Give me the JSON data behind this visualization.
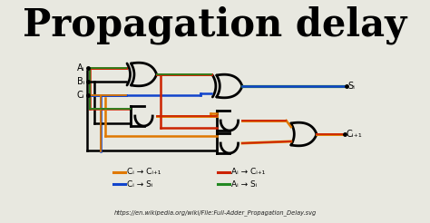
{
  "title": "Propagation delay",
  "bg_top": "#f0f0e8",
  "bg_bottom": "#c8c8c8",
  "title_color": "#000000",
  "title_fontsize": 30,
  "url_text": "https://en.wikipedia.org/wiki/File:Full-Adder_Propagation_Delay.svg",
  "legend_items": [
    {
      "color": "#e07800",
      "label": "Cᵢ → Cᵢ₊₁"
    },
    {
      "color": "#cc2200",
      "label": "Aᵢ → Cᵢ₊₁"
    },
    {
      "color": "#1144cc",
      "label": "Cᵢ → Sᵢ"
    },
    {
      "color": "#228822",
      "label": "Aᵢ → Sᵢ"
    }
  ],
  "input_labels": [
    "Aᵢ",
    "Bᵢ",
    "Cᵢ"
  ],
  "output_s": "Sᵢ",
  "output_c": "Cᵢ₊₁",
  "col_orange": "#e07800",
  "col_red": "#cc2200",
  "col_blue": "#1144cc",
  "col_green": "#228822",
  "col_black": "#000000",
  "col_bg": "#e8e8e0"
}
